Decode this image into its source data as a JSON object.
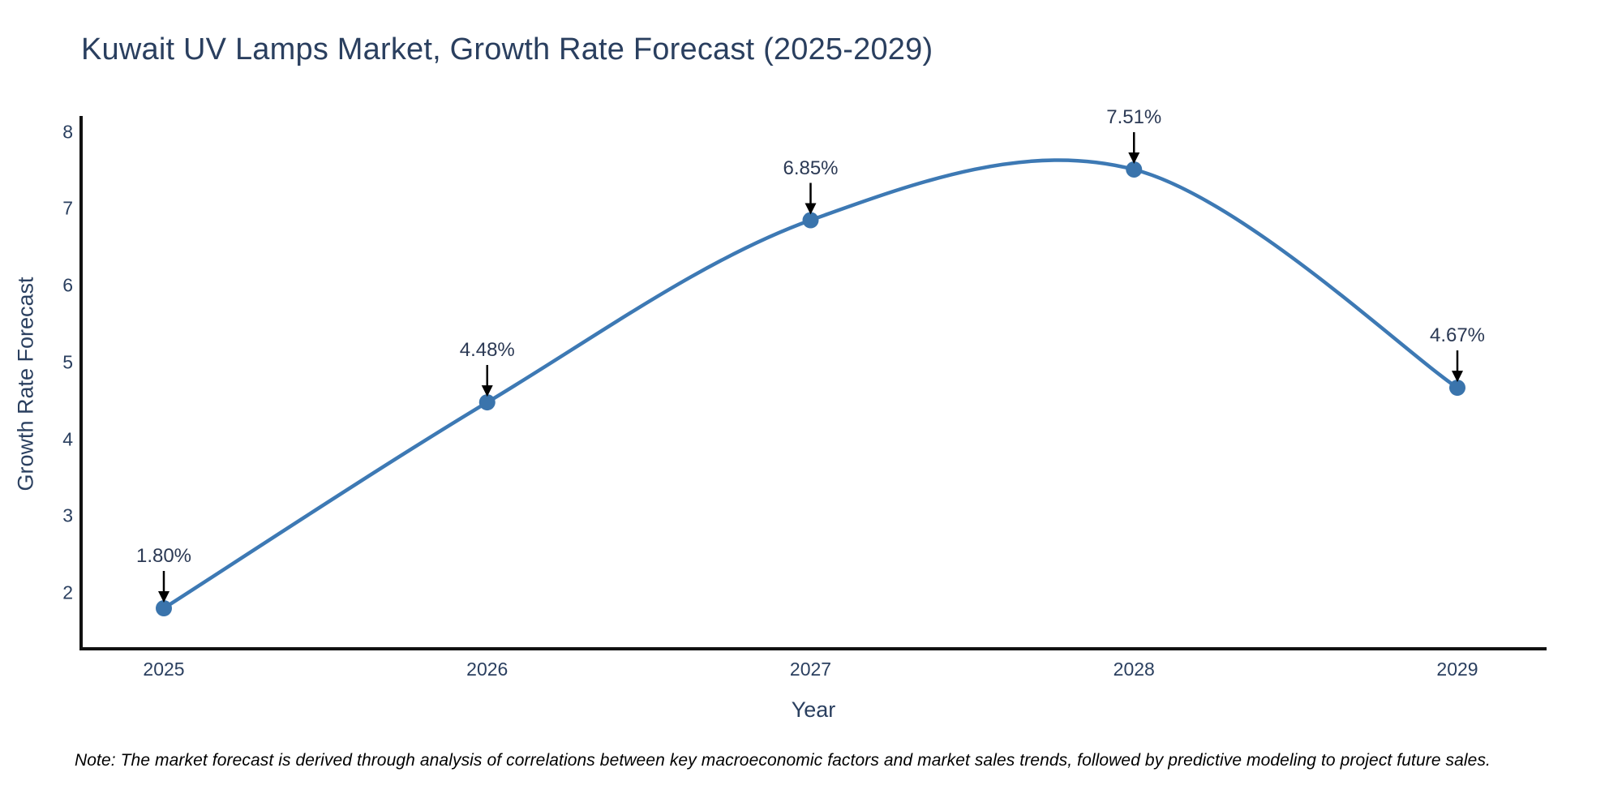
{
  "title": "Kuwait UV Lamps Market, Growth Rate Forecast (2025-2029)",
  "note": "Note: The market forecast is derived through analysis of correlations between key macroeconomic factors and market sales trends, followed by predictive modeling to project future sales.",
  "chart_data": {
    "type": "line",
    "line_shape": "spline",
    "title": "Kuwait UV Lamps Market, Growth Rate Forecast (2025-2029)",
    "xlabel": "Year",
    "ylabel": "Growth Rate Forecast",
    "x": [
      2025,
      2026,
      2027,
      2028,
      2029
    ],
    "values": [
      1.8,
      4.48,
      6.85,
      7.51,
      4.67
    ],
    "point_labels": [
      "1.80%",
      "4.48%",
      "6.85%",
      "7.51%",
      "4.67%"
    ],
    "y_ticks": [
      2,
      3,
      4,
      5,
      6,
      7,
      8
    ],
    "ylim": [
      1.3,
      8.2
    ],
    "grid": false,
    "legend": "none",
    "markers": true,
    "annotation_arrows": "black-down-arrow",
    "colors": {
      "line": "#3d79b4",
      "marker": "#3a74ac",
      "axis": "#111111",
      "tick_text": "#2a3f5f",
      "title_text": "#2a3f5f",
      "annotation_text": "#2b3954",
      "arrow": "#000000",
      "background": "#ffffff"
    }
  }
}
